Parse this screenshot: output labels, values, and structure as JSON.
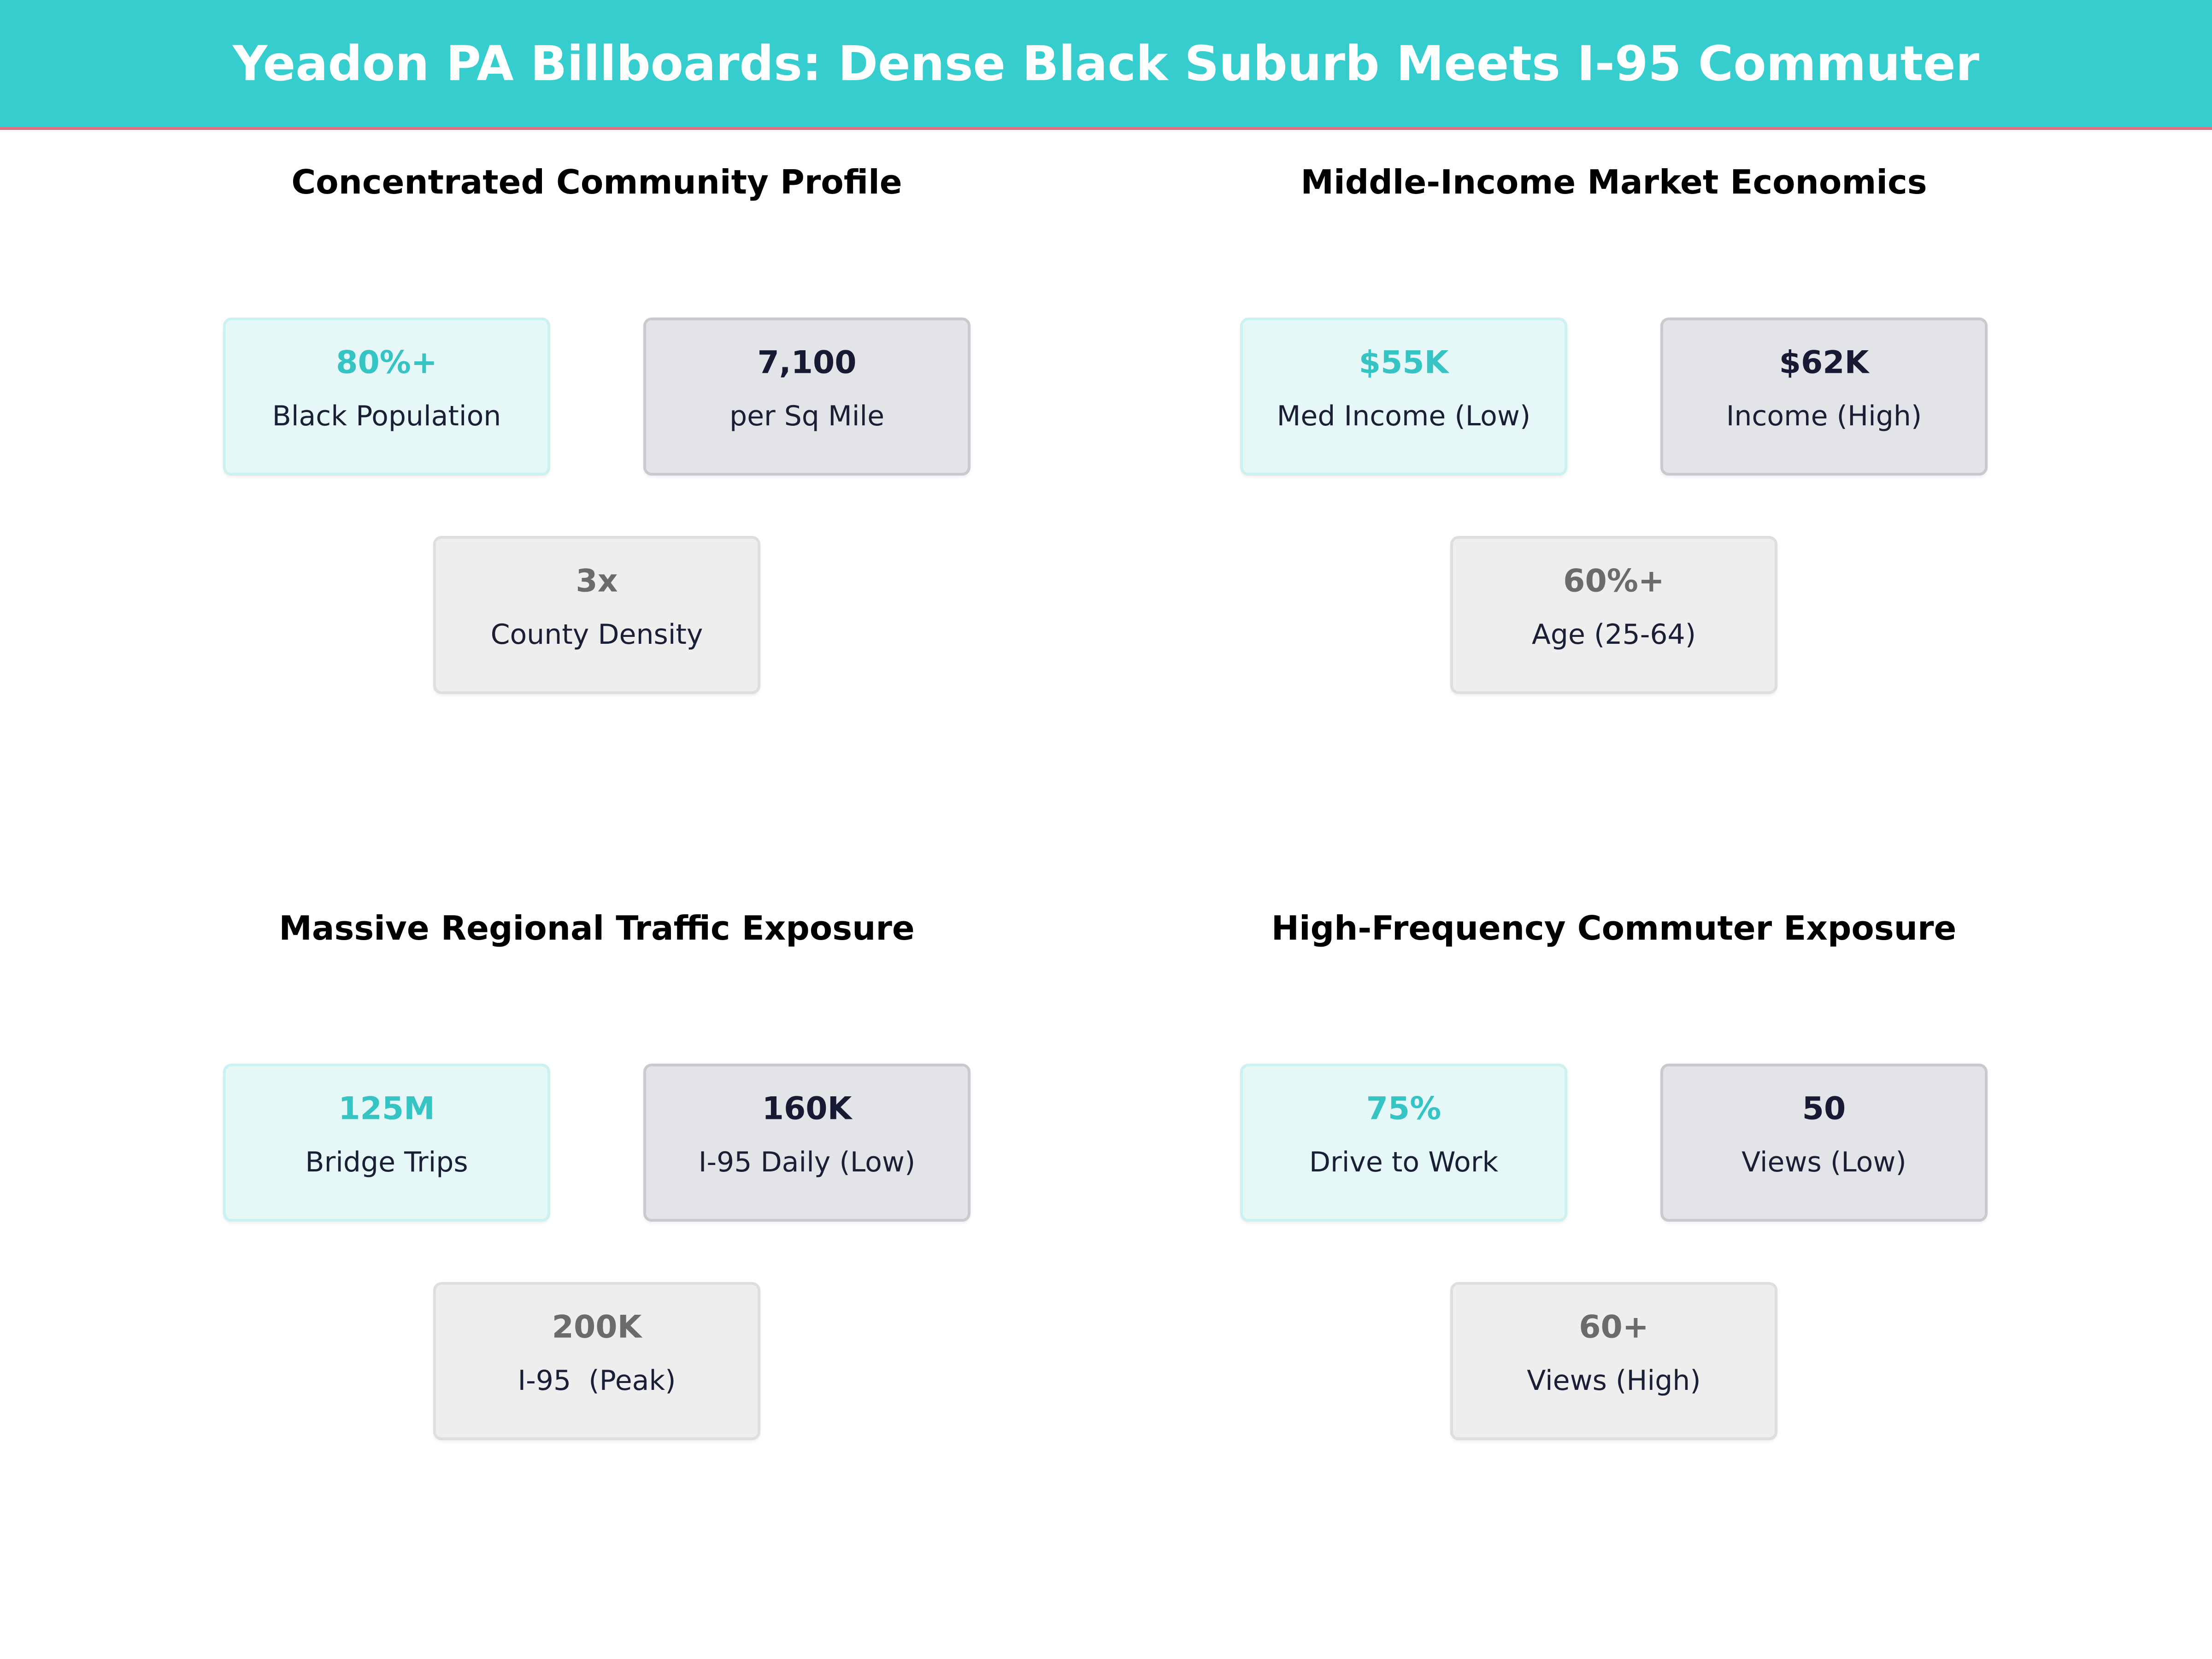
{
  "header": {
    "title": "Yeadon PA Billboards: Dense Black Suburb Meets I-95 Commuter"
  },
  "panels": [
    {
      "title": "Concentrated Community Profile",
      "cards": [
        {
          "value": "80%+",
          "label": "Black Population"
        },
        {
          "value": "7,100",
          "label": "per Sq Mile"
        },
        {
          "value": "3x",
          "label": "County Density"
        }
      ]
    },
    {
      "title": "Middle-Income Market Economics",
      "cards": [
        {
          "value": "$55K",
          "label": "Med Income (Low)"
        },
        {
          "value": "$62K",
          "label": "Income (High)"
        },
        {
          "value": "60%+",
          "label": "Age (25-64)"
        }
      ]
    },
    {
      "title": "Massive Regional Traffic Exposure",
      "cards": [
        {
          "value": "125M",
          "label": "Bridge Trips"
        },
        {
          "value": "160K",
          "label": "I-95 Daily (Low)"
        },
        {
          "value": "200K",
          "label": "I-95  (Peak)"
        }
      ]
    },
    {
      "title": "High-Frequency Commuter Exposure",
      "cards": [
        {
          "value": "75%",
          "label": "Drive to Work"
        },
        {
          "value": "50",
          "label": "Views (Low)"
        },
        {
          "value": "60+",
          "label": "Views (High)"
        }
      ]
    }
  ]
}
